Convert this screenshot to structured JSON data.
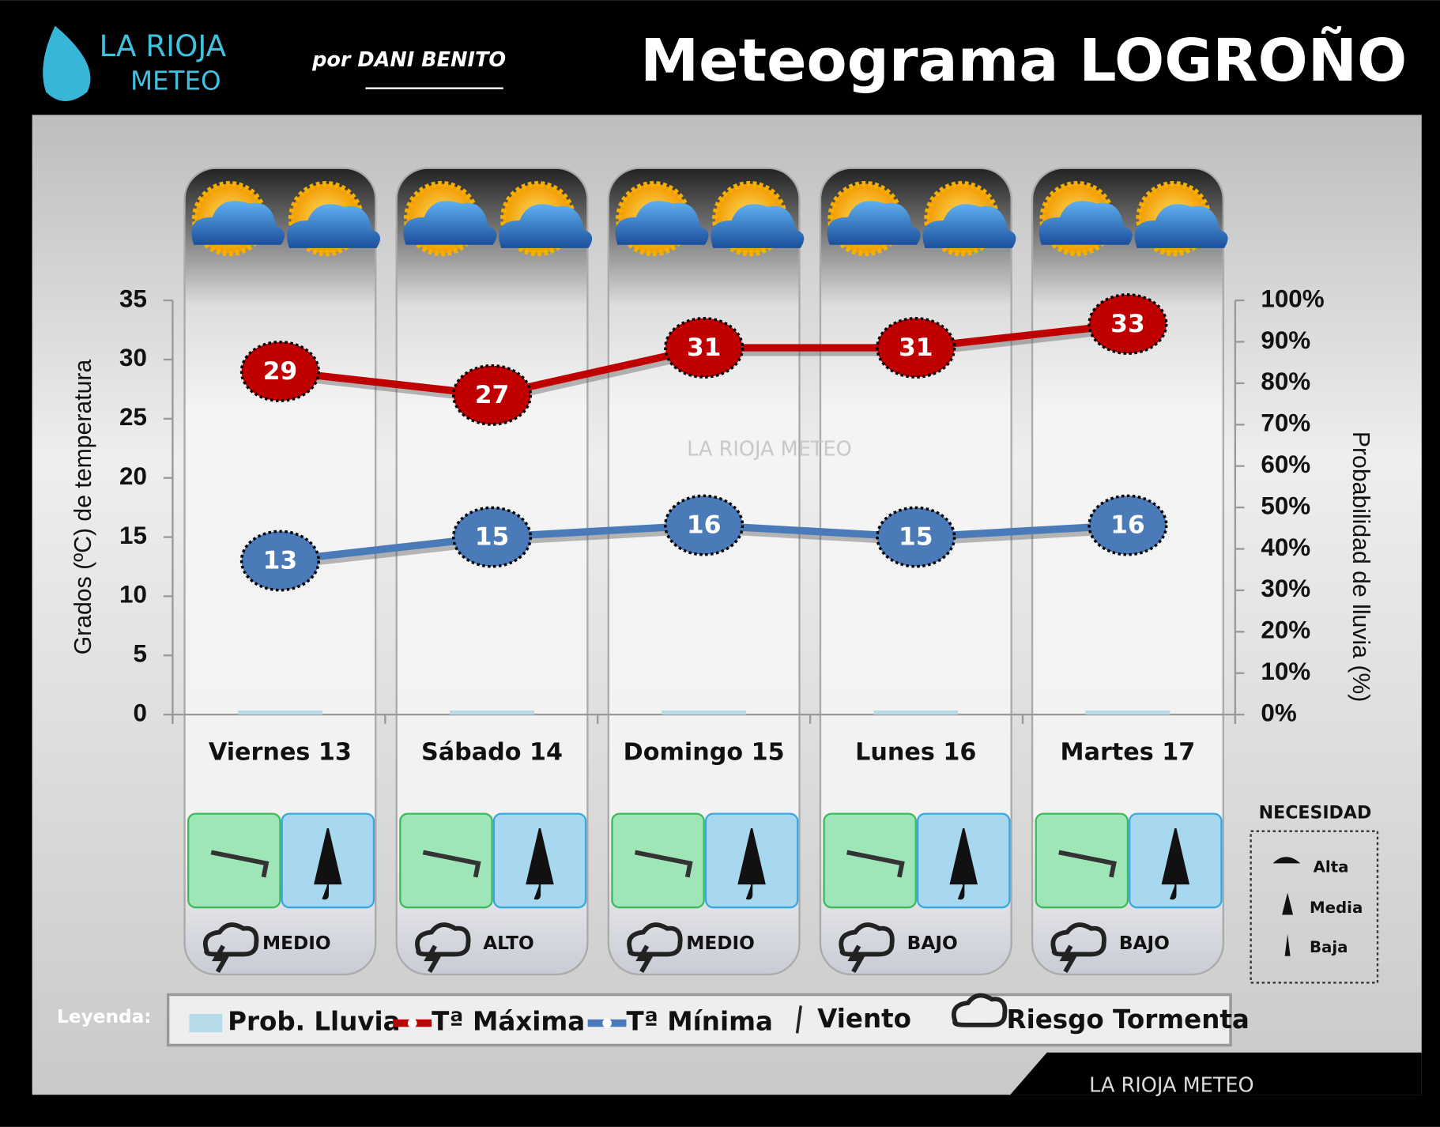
{
  "header": {
    "logo_top": "LA RIOJA",
    "logo_bottom": "METEO",
    "author": "por DANI BENITO",
    "title": "Meteograma LOGROÑO"
  },
  "chart_data": {
    "type": "line",
    "categories": [
      "Viernes 13",
      "Sábado 14",
      "Domingo 15",
      "Lunes 16",
      "Martes 17"
    ],
    "series": [
      {
        "name": "Prob. Lluvia",
        "type": "bar",
        "color": "#b7dbe8",
        "axis": "y2",
        "values": [
          1,
          1,
          1,
          1,
          1
        ]
      },
      {
        "name": "Tª Máxima",
        "color": "#c00000",
        "values": [
          29,
          27,
          31,
          31,
          33
        ]
      },
      {
        "name": "Tª Mínima",
        "color": "#4a7ab8",
        "values": [
          13,
          15,
          16,
          15,
          16
        ]
      }
    ],
    "ylim": [
      0,
      35
    ],
    "yticks": [
      0,
      5,
      10,
      15,
      20,
      25,
      30,
      35
    ],
    "y2lim": [
      0,
      100
    ],
    "y2ticks": [
      {
        "value": 0,
        "label": "0%"
      },
      {
        "value": 10,
        "label": "10%"
      },
      {
        "value": 20,
        "label": "20%"
      },
      {
        "value": 30,
        "label": "30%"
      },
      {
        "value": 40,
        "label": "40%"
      },
      {
        "value": 50,
        "label": "50%"
      },
      {
        "value": 60,
        "label": "60%"
      },
      {
        "value": 70,
        "label": "70%"
      },
      {
        "value": 80,
        "label": "80%"
      },
      {
        "value": 90,
        "label": "90%"
      },
      {
        "value": 100,
        "label": "100%"
      }
    ],
    "ylabel": "Grados (ºC) de temperatura",
    "y2label": "Probabilidad de lluvia (%)",
    "storm_risk": [
      "MEDIO",
      "ALTO",
      "MEDIO",
      "BAJO",
      "BAJO"
    ],
    "watermark": "LA RIOJA METEO"
  },
  "legend": {
    "title": "Leyenda:",
    "wind": "Viento",
    "storm": "Riesgo Tormenta"
  },
  "necesidad": {
    "title": "NECESIDAD",
    "items": [
      "Alta",
      "Media",
      "Baja"
    ]
  },
  "footer": {
    "brand": "LA RIOJA METEO"
  }
}
